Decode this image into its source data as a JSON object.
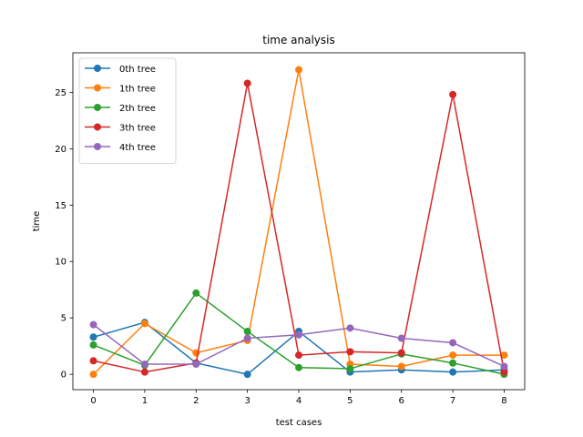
{
  "chart_data": {
    "type": "line",
    "title": "time analysis",
    "xlabel": "test cases",
    "ylabel": "time",
    "x": [
      0,
      1,
      2,
      3,
      4,
      5,
      6,
      7,
      8
    ],
    "xlim": [
      -0.4,
      8.4
    ],
    "ylim": [
      -1.36,
      28.5
    ],
    "xticks": [
      0,
      1,
      2,
      3,
      4,
      5,
      6,
      7,
      8
    ],
    "yticks": [
      0,
      5,
      10,
      15,
      20,
      25
    ],
    "grid": false,
    "legend_position": "top-left",
    "marker": "circle",
    "series": [
      {
        "name": "0th tree",
        "color": "#1f77b4",
        "values": [
          3.3,
          4.6,
          1.0,
          0.0,
          3.8,
          0.2,
          0.4,
          0.2,
          0.4
        ]
      },
      {
        "name": "1th tree",
        "color": "#ff7f0e",
        "values": [
          0.0,
          4.5,
          1.9,
          3.0,
          27.0,
          0.9,
          0.7,
          1.7,
          1.7
        ]
      },
      {
        "name": "2th tree",
        "color": "#2ca02c",
        "values": [
          2.6,
          0.8,
          7.2,
          3.8,
          0.6,
          0.5,
          1.8,
          1.0,
          0.0
        ]
      },
      {
        "name": "3th tree",
        "color": "#d62728",
        "values": [
          1.2,
          0.2,
          1.0,
          25.8,
          1.7,
          2.0,
          1.9,
          24.8,
          0.2
        ]
      },
      {
        "name": "4th tree",
        "color": "#9467bd",
        "values": [
          4.4,
          0.9,
          0.9,
          3.2,
          3.5,
          4.1,
          3.2,
          2.8,
          0.7
        ]
      }
    ]
  }
}
